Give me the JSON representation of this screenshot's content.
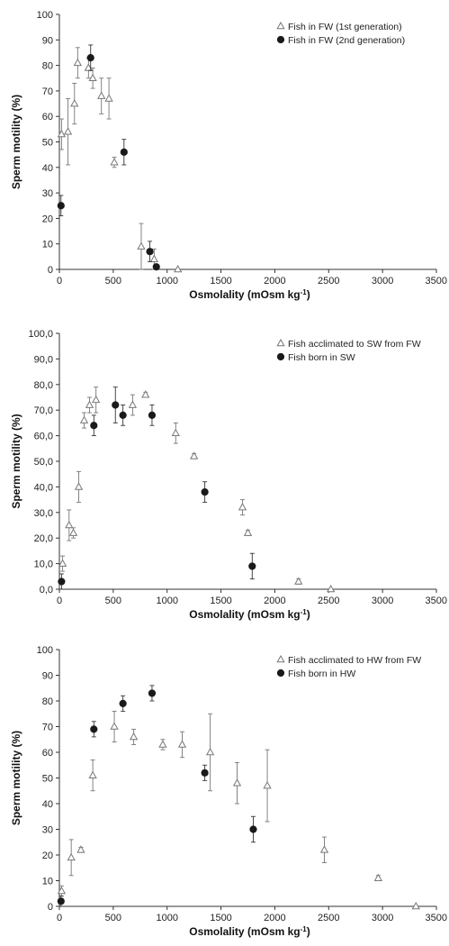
{
  "chart_data": [
    {
      "type": "scatter",
      "xlabel": "Osmolality (mOsm kg",
      "xlabel_sup": "-1",
      "xlabel_end": ")",
      "ylabel": "Sperm motility (%)",
      "xlim": [
        0,
        3500
      ],
      "ylim": [
        0,
        100
      ],
      "xticks": [
        "0",
        "500",
        "1000",
        "1500",
        "2000",
        "2500",
        "3000",
        "3500"
      ],
      "yticks": [
        "0",
        "10",
        "20",
        "30",
        "40",
        "50",
        "60",
        "70",
        "80",
        "90",
        "100"
      ],
      "grid": false,
      "legend_position": "top-right",
      "series": [
        {
          "name": "Fish in FW (1st generation)",
          "marker": "open-triangle",
          "points": [
            {
              "x": 20,
              "y": 53,
              "err": 6
            },
            {
              "x": 80,
              "y": 54,
              "err": 13
            },
            {
              "x": 140,
              "y": 65,
              "err": 8
            },
            {
              "x": 170,
              "y": 81,
              "err": 6
            },
            {
              "x": 270,
              "y": 79,
              "err": 4
            },
            {
              "x": 310,
              "y": 75,
              "err": 4
            },
            {
              "x": 390,
              "y": 68,
              "err": 7
            },
            {
              "x": 460,
              "y": 67,
              "err": 8
            },
            {
              "x": 510,
              "y": 42,
              "err": 2
            },
            {
              "x": 760,
              "y": 9,
              "err": 9
            },
            {
              "x": 880,
              "y": 4,
              "err": 4
            },
            {
              "x": 1100,
              "y": 0,
              "err": 0
            }
          ]
        },
        {
          "name": "Fish in FW (2nd generation)",
          "marker": "filled-circle",
          "points": [
            {
              "x": 15,
              "y": 25,
              "err": 4
            },
            {
              "x": 290,
              "y": 83,
              "err": 5
            },
            {
              "x": 600,
              "y": 46,
              "err": 5
            },
            {
              "x": 840,
              "y": 7,
              "err": 4
            },
            {
              "x": 900,
              "y": 1,
              "err": 0
            }
          ]
        }
      ]
    },
    {
      "type": "scatter",
      "xlabel": "Osmolality (mOsm kg",
      "xlabel_sup": "-1",
      "xlabel_end": ")",
      "ylabel": "Sperm motility (%)",
      "xlim": [
        0,
        3500
      ],
      "ylim": [
        0,
        100
      ],
      "xticks": [
        "0",
        "500",
        "1000",
        "1500",
        "2000",
        "2500",
        "3000",
        "3500"
      ],
      "yticks": [
        "0,0",
        "10,0",
        "20,0",
        "30,0",
        "40,0",
        "50,0",
        "60,0",
        "70,0",
        "80,0",
        "90,0",
        "100,0"
      ],
      "grid": false,
      "legend_position": "top-right",
      "series": [
        {
          "name": "Fish acclimated to SW from FW",
          "marker": "open-triangle",
          "points": [
            {
              "x": 30,
              "y": 10,
              "err": 3
            },
            {
              "x": 90,
              "y": 25,
              "err": 6
            },
            {
              "x": 130,
              "y": 22,
              "err": 2
            },
            {
              "x": 180,
              "y": 40,
              "err": 6
            },
            {
              "x": 230,
              "y": 66,
              "err": 3
            },
            {
              "x": 280,
              "y": 72,
              "err": 3
            },
            {
              "x": 340,
              "y": 74,
              "err": 5
            },
            {
              "x": 680,
              "y": 72,
              "err": 4
            },
            {
              "x": 800,
              "y": 76,
              "err": 1
            },
            {
              "x": 1080,
              "y": 61,
              "err": 4
            },
            {
              "x": 1250,
              "y": 52,
              "err": 1
            },
            {
              "x": 1700,
              "y": 32,
              "err": 3
            },
            {
              "x": 1750,
              "y": 22,
              "err": 1
            },
            {
              "x": 2220,
              "y": 3,
              "err": 1
            },
            {
              "x": 2520,
              "y": 0,
              "err": 0
            }
          ]
        },
        {
          "name": "Fish born in SW",
          "marker": "filled-circle",
          "points": [
            {
              "x": 20,
              "y": 3,
              "err": 3
            },
            {
              "x": 320,
              "y": 64,
              "err": 4
            },
            {
              "x": 520,
              "y": 72,
              "err": 7
            },
            {
              "x": 590,
              "y": 68,
              "err": 4
            },
            {
              "x": 860,
              "y": 68,
              "err": 4
            },
            {
              "x": 1350,
              "y": 38,
              "err": 4
            },
            {
              "x": 1790,
              "y": 9,
              "err": 5
            }
          ]
        }
      ]
    },
    {
      "type": "scatter",
      "xlabel": "Osmolality (mOsm kg",
      "xlabel_sup": "-1",
      "xlabel_end": ")",
      "ylabel": "Sperm motility (%)",
      "xlim": [
        0,
        3500
      ],
      "ylim": [
        0,
        100
      ],
      "xticks": [
        "0",
        "500",
        "1000",
        "1500",
        "2000",
        "2500",
        "3000",
        "3500"
      ],
      "yticks": [
        "0",
        "10",
        "20",
        "30",
        "40",
        "50",
        "60",
        "70",
        "80",
        "90",
        "100"
      ],
      "grid": false,
      "legend_position": "top-right",
      "series": [
        {
          "name": "Fish acclimated to HW from FW",
          "marker": "open-triangle",
          "points": [
            {
              "x": 20,
              "y": 6,
              "err": 2
            },
            {
              "x": 110,
              "y": 19,
              "err": 7
            },
            {
              "x": 200,
              "y": 22,
              "err": 1
            },
            {
              "x": 310,
              "y": 51,
              "err": 6
            },
            {
              "x": 510,
              "y": 70,
              "err": 6
            },
            {
              "x": 690,
              "y": 66,
              "err": 3
            },
            {
              "x": 960,
              "y": 63,
              "err": 2
            },
            {
              "x": 1140,
              "y": 63,
              "err": 5
            },
            {
              "x": 1400,
              "y": 60,
              "err": 15
            },
            {
              "x": 1650,
              "y": 48,
              "err": 8
            },
            {
              "x": 1930,
              "y": 47,
              "err": 14
            },
            {
              "x": 2460,
              "y": 22,
              "err": 5
            },
            {
              "x": 2960,
              "y": 11,
              "err": 1
            },
            {
              "x": 3310,
              "y": 0,
              "err": 0
            }
          ]
        },
        {
          "name": "Fish born in HW",
          "marker": "filled-circle",
          "points": [
            {
              "x": 15,
              "y": 2,
              "err": 2
            },
            {
              "x": 320,
              "y": 69,
              "err": 3
            },
            {
              "x": 590,
              "y": 79,
              "err": 3
            },
            {
              "x": 860,
              "y": 83,
              "err": 3
            },
            {
              "x": 1350,
              "y": 52,
              "err": 3
            },
            {
              "x": 1800,
              "y": 30,
              "err": 5
            }
          ]
        }
      ]
    }
  ]
}
